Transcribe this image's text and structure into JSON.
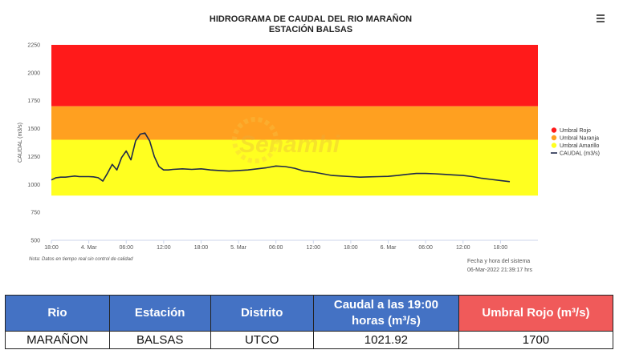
{
  "chart_data": {
    "type": "line",
    "title": "HIDROGRAMA DE CAUDAL DEL RIO MARAÑON",
    "subtitle": "ESTACIÓN BALSAS",
    "ylabel": "CAUDAL (m3/s)",
    "xlabel": "",
    "ylim": [
      500,
      2250
    ],
    "yticks": [
      500,
      750,
      1000,
      1250,
      1500,
      1750,
      2000,
      2250
    ],
    "xlim": [
      0,
      52
    ],
    "xticks": [
      {
        "x": 0,
        "label": "18:00"
      },
      {
        "x": 4,
        "label": "4. Mar"
      },
      {
        "x": 8,
        "label": "06:00"
      },
      {
        "x": 12,
        "label": "12:00"
      },
      {
        "x": 16,
        "label": "18:00"
      },
      {
        "x": 20,
        "label": "5. Mar"
      },
      {
        "x": 24,
        "label": "06:00"
      },
      {
        "x": 28,
        "label": "12:00"
      },
      {
        "x": 32,
        "label": "18:00"
      },
      {
        "x": 36,
        "label": "6. Mar"
      },
      {
        "x": 40,
        "label": "06:00"
      },
      {
        "x": 44,
        "label": "12:00"
      },
      {
        "x": 48,
        "label": "18:00"
      }
    ],
    "bands": [
      {
        "name": "Umbral Rojo",
        "from": 1700,
        "to": 2250,
        "color": "#ff1a1a"
      },
      {
        "name": "Umbral Naranja",
        "from": 1400,
        "to": 1700,
        "color": "#ffa020"
      },
      {
        "name": "Umbral Amarillo",
        "from": 900,
        "to": 1400,
        "color": "#ffff20"
      }
    ],
    "series": [
      {
        "name": "CAUDAL (m3/s)",
        "color": "#1f2a4a",
        "x": [
          0,
          0.5,
          1,
          1.5,
          2,
          2.5,
          3,
          3.5,
          4,
          4.5,
          5,
          5.5,
          6,
          6.5,
          7,
          7.5,
          8,
          8.5,
          9,
          9.5,
          10,
          10.5,
          11,
          11.5,
          12,
          12.5,
          13,
          14,
          15,
          16,
          17,
          18,
          19,
          20,
          21,
          22,
          23,
          24,
          25,
          26,
          27,
          28,
          29,
          30,
          31,
          32,
          33,
          34,
          35,
          36,
          37,
          38,
          39,
          40,
          41,
          42,
          43,
          44,
          45,
          46,
          47,
          48,
          49
        ],
        "values": [
          1040,
          1060,
          1065,
          1065,
          1070,
          1075,
          1070,
          1070,
          1070,
          1068,
          1060,
          1030,
          1100,
          1180,
          1130,
          1240,
          1300,
          1220,
          1390,
          1450,
          1460,
          1390,
          1250,
          1160,
          1130,
          1130,
          1135,
          1140,
          1135,
          1140,
          1130,
          1125,
          1120,
          1125,
          1130,
          1140,
          1150,
          1165,
          1160,
          1145,
          1120,
          1110,
          1095,
          1080,
          1075,
          1070,
          1065,
          1068,
          1070,
          1072,
          1080,
          1090,
          1098,
          1098,
          1095,
          1090,
          1085,
          1080,
          1070,
          1055,
          1045,
          1035,
          1025
        ]
      }
    ],
    "legend": {
      "placement": "right",
      "items": [
        "Umbral Rojo",
        "Umbral Naranja",
        "Umbral Amarillo",
        "CAUDAL (m3/s)"
      ]
    },
    "grid": false
  },
  "watermark_text": "Senamhi",
  "note": "Nota: Datos en tiempo real sin control de calidad",
  "timestamp": {
    "label": "Fecha y hora del sistema",
    "value": "06-Mar-2022 21:39:17 hrs"
  },
  "menu_icon": "hamburger-menu-icon",
  "table": {
    "headers": [
      {
        "label": "Rio",
        "color": "#4472c4"
      },
      {
        "label": "Estación",
        "color": "#4472c4"
      },
      {
        "label": "Distrito",
        "color": "#4472c4"
      },
      {
        "label": "Caudal a las 19:00 horas (m³/s)",
        "color": "#4472c4"
      },
      {
        "label": "Umbral Rojo (m³/s)",
        "color": "#f05a5a"
      }
    ],
    "row": [
      "MARAÑON",
      "BALSAS",
      "UTCO",
      "1021.92",
      "1700"
    ]
  }
}
